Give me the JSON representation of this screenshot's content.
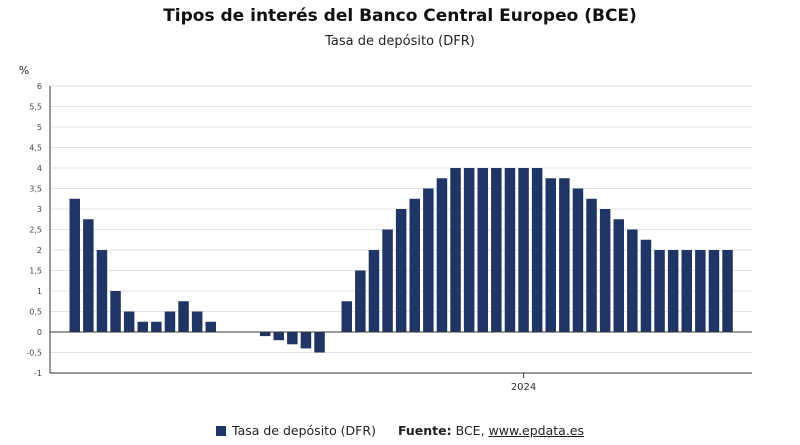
{
  "title": "Tipos de interés del Banco Central Europeo (BCE)",
  "subtitle": "Tasa de depósito (DFR)",
  "legend": {
    "series_label": "Tasa de depósito (DFR)",
    "source_label": "Fuente:",
    "source_text": "BCE,",
    "source_link": "www.epdata.es"
  },
  "colors": {
    "bar": "#1f3565",
    "grid": "#e3e3e3",
    "zero_line": "#333333",
    "axis": "#333333"
  },
  "chart_data": {
    "type": "bar",
    "title": "Tipos de interés del Banco Central Europeo (BCE)",
    "subtitle": "Tasa de depósito (DFR)",
    "ylabel": "%",
    "ylim": [
      -1,
      6
    ],
    "yticks": [
      "6",
      "5,5",
      "5",
      "4,5",
      "4",
      "3,5",
      "3",
      "2,5",
      "2",
      "1,5",
      "1",
      "0,5",
      "0",
      "-0,5",
      "-1"
    ],
    "x_tick_label": "2024",
    "x_tick_index": 33,
    "grid": true,
    "legend_position": "bottom",
    "series": [
      {
        "name": "Tasa de depósito (DFR)",
        "values": [
          3.25,
          2.75,
          2.0,
          1.0,
          0.5,
          0.25,
          0.25,
          0.5,
          0.75,
          0.5,
          0.25,
          0,
          0,
          0,
          -0.1,
          -0.2,
          -0.3,
          -0.4,
          -0.5,
          0,
          0.75,
          1.5,
          2.0,
          2.5,
          3.0,
          3.25,
          3.5,
          3.75,
          4.0,
          4.0,
          4.0,
          4.0,
          4.0,
          4.0,
          4.0,
          3.75,
          3.75,
          3.5,
          3.25,
          3.0,
          2.75,
          2.5,
          2.25,
          2.0,
          2.0,
          2.0,
          2.0,
          2.0,
          2.0
        ]
      }
    ]
  }
}
